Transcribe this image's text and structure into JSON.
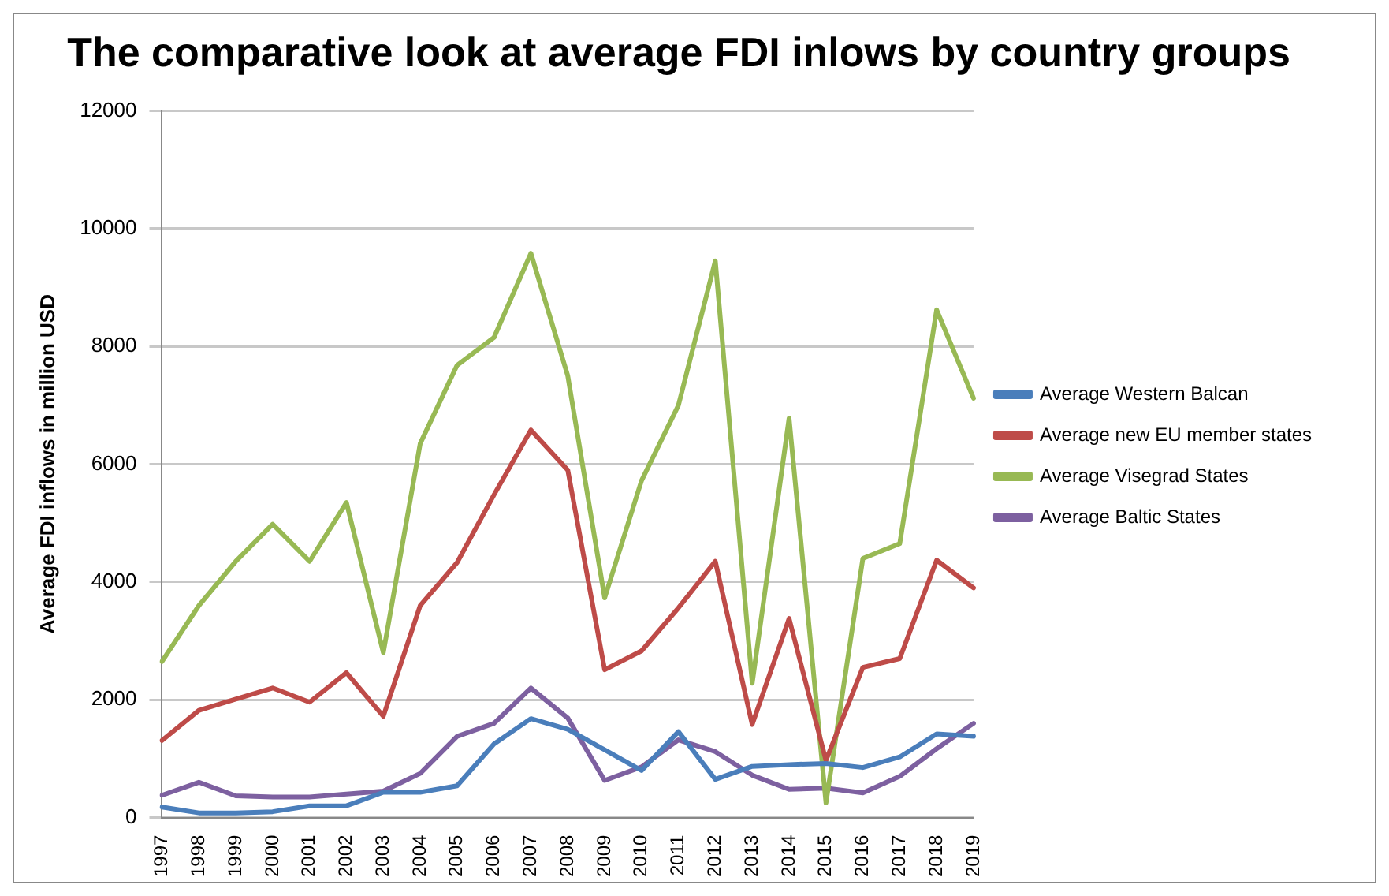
{
  "chart_data": {
    "type": "line",
    "title": "The comparative look at average FDI inlows by country groups",
    "ylabel": "Average FDI inflows in million USD",
    "categories": [
      "1997",
      "1998",
      "1999",
      "2000",
      "2001",
      "2002",
      "2003",
      "2004",
      "2005",
      "2006",
      "2007",
      "2008",
      "2009",
      "2010",
      "2011",
      "2012",
      "2013",
      "2014",
      "2015",
      "2016",
      "2017",
      "2018",
      "2019"
    ],
    "series": [
      {
        "name": "Average Western Balcan",
        "color": "#4a7ebb",
        "values": [
          180,
          80,
          80,
          100,
          200,
          200,
          430,
          430,
          540,
          1250,
          1680,
          1500,
          1150,
          800,
          1460,
          650,
          870,
          900,
          920,
          850,
          1030,
          1420,
          1380
        ]
      },
      {
        "name": "Average new EU member states",
        "color": "#be4b48",
        "values": [
          1310,
          1820,
          2010,
          2200,
          1960,
          2460,
          1720,
          3600,
          4330,
          5480,
          6580,
          5900,
          2510,
          2830,
          3560,
          4350,
          1580,
          3380,
          970,
          2550,
          2700,
          4370,
          3900
        ]
      },
      {
        "name": "Average Visegrad States",
        "color": "#98b954",
        "values": [
          2650,
          3600,
          4350,
          4980,
          4350,
          5350,
          2800,
          6350,
          7680,
          8150,
          9580,
          7500,
          3730,
          5720,
          7000,
          9450,
          2280,
          6780,
          250,
          4400,
          4650,
          8620,
          7120
        ]
      },
      {
        "name": "Average Baltic States",
        "color": "#7d60a0",
        "values": [
          380,
          600,
          370,
          350,
          350,
          400,
          450,
          750,
          1380,
          1600,
          2200,
          1690,
          630,
          860,
          1320,
          1120,
          720,
          480,
          500,
          420,
          700,
          1170,
          1600
        ]
      }
    ],
    "ylim": [
      0,
      12000
    ],
    "yticks": [
      0,
      2000,
      4000,
      6000,
      8000,
      10000,
      12000
    ],
    "grid": "y",
    "legend": "right",
    "marker": "none",
    "line_style": "solid"
  }
}
